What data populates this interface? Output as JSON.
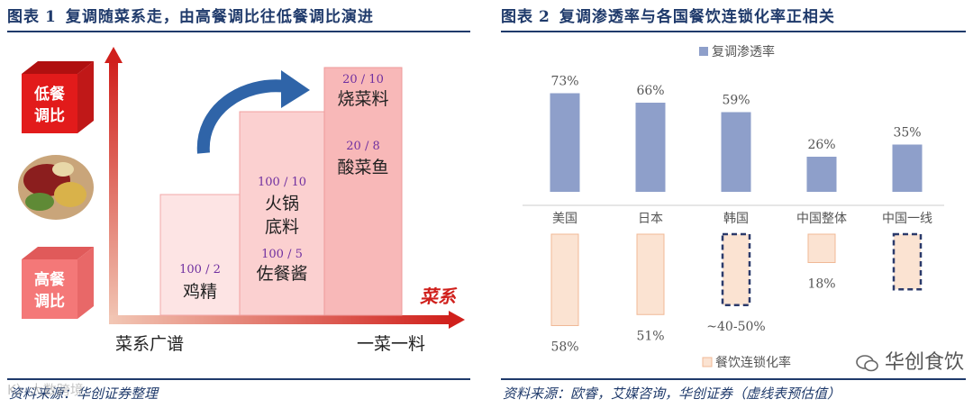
{
  "left": {
    "fig_label": "图表",
    "fig_num": "1",
    "title": "复调随菜系走，由高餐调比往低餐调比演进",
    "source": "资料来源：华创证券整理",
    "y_axis": {
      "top_label": [
        "低餐",
        "调比"
      ],
      "bottom_label": [
        "高餐",
        "调比"
      ]
    },
    "x_axis": {
      "label": "菜系",
      "left_end": "菜系广谱",
      "right_end": "一菜一料"
    },
    "chart_data": {
      "type": "bar",
      "categories": [
        "鸡精",
        "火锅底料",
        "佐餐酱",
        "酸菜鱼",
        "烧菜料"
      ],
      "steps": [
        {
          "items": [
            {
              "ratio": "100 / 2",
              "name": [
                "鸡精"
              ]
            }
          ]
        },
        {
          "items": [
            {
              "ratio": "100 / 10",
              "name": [
                "火锅",
                "底料"
              ]
            },
            {
              "ratio": "100 / 5",
              "name": [
                "佐餐酱"
              ]
            }
          ]
        },
        {
          "items": [
            {
              "ratio": "20 / 10",
              "name": [
                "烧菜料"
              ]
            },
            {
              "ratio": "20 / 8",
              "name": [
                "酸菜鱼"
              ]
            }
          ]
        }
      ]
    },
    "colors": {
      "red": "#e02020",
      "pink": "#f07070",
      "bar1": "#fde4e4",
      "bar2": "#fbd0d0",
      "bar3": "#f8b6b6",
      "arrow": "#2f64a8",
      "ratio": "#7030a0"
    }
  },
  "right": {
    "fig_label": "图表",
    "fig_num": "2",
    "title": "复调渗透率与各国餐饮连锁化率正相关",
    "source": "资料来源：欧睿，艾媒咨询，华创证券（虚线表预估值）",
    "legend_top": "复调渗透率",
    "legend_bottom": "餐饮连锁化率",
    "chart_data": {
      "type": "bar",
      "categories": [
        "美国",
        "日本",
        "韩国",
        "中国整体",
        "中国一线"
      ],
      "series": [
        {
          "name": "复调渗透率",
          "values": [
            73,
            66,
            59,
            26,
            35
          ],
          "labels": [
            "73%",
            "66%",
            "59%",
            "26%",
            "35%"
          ]
        },
        {
          "name": "餐饮连锁化率",
          "values": [
            58,
            51,
            45,
            18,
            35
          ],
          "labels": [
            "58%",
            "51%",
            "~40-50%",
            "18%",
            ""
          ],
          "estimated": [
            false,
            false,
            true,
            false,
            true
          ]
        }
      ]
    },
    "colors": {
      "bar": "#8e9fca",
      "box": "#fbe3d2",
      "box_border": "#f0b896",
      "dash": "#2b3a6b"
    }
  },
  "brand": {
    "wechat": "华创食饮",
    "watermark": "K〉大数跨境"
  }
}
